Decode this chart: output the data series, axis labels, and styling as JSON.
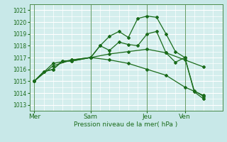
{
  "background_color": "#c8e8e8",
  "plot_bg_color": "#d4eeed",
  "grid_color": "#ffffff",
  "line_color": "#1a6b1a",
  "xlabel": "Pression niveau de la mer( hPa )",
  "ylim": [
    1012.5,
    1021.5
  ],
  "yticks": [
    1013,
    1014,
    1015,
    1016,
    1017,
    1018,
    1019,
    1020,
    1021
  ],
  "xtick_labels": [
    "Mer",
    "Sam",
    "Jeu",
    "Ven"
  ],
  "xtick_positions": [
    0,
    24,
    48,
    64
  ],
  "xlim": [
    -2,
    80
  ],
  "lines": [
    {
      "x": [
        0,
        4,
        8,
        12,
        16,
        24,
        28,
        32,
        36,
        40,
        44,
        48,
        52,
        56,
        60,
        64,
        68,
        72
      ],
      "y": [
        1015.0,
        1015.8,
        1016.0,
        1016.7,
        1016.7,
        1017.0,
        1018.0,
        1018.8,
        1019.2,
        1018.7,
        1020.3,
        1020.5,
        1020.4,
        1019.0,
        1017.5,
        1017.0,
        1014.2,
        1013.7
      ]
    },
    {
      "x": [
        0,
        4,
        8,
        12,
        16,
        24,
        28,
        32,
        36,
        40,
        44,
        48,
        52,
        56,
        60,
        64,
        68,
        72
      ],
      "y": [
        1015.0,
        1015.8,
        1016.0,
        1016.7,
        1016.7,
        1017.0,
        1018.0,
        1017.6,
        1018.3,
        1018.1,
        1018.0,
        1019.0,
        1019.2,
        1017.4,
        1016.6,
        1017.0,
        1014.1,
        1013.5
      ]
    },
    {
      "x": [
        0,
        8,
        16,
        24,
        32,
        40,
        48,
        56,
        64,
        72
      ],
      "y": [
        1015.0,
        1016.3,
        1016.8,
        1017.0,
        1017.3,
        1017.5,
        1017.7,
        1017.4,
        1016.8,
        1016.2
      ]
    },
    {
      "x": [
        0,
        8,
        16,
        24,
        32,
        40,
        48,
        56,
        64,
        72
      ],
      "y": [
        1015.0,
        1016.5,
        1016.8,
        1017.0,
        1016.8,
        1016.5,
        1016.0,
        1015.5,
        1014.5,
        1013.8
      ]
    }
  ],
  "vlines": [
    0,
    24,
    48,
    64
  ],
  "figwidth": 3.2,
  "figheight": 2.0,
  "dpi": 100,
  "ylabel_fontsize": 5.5,
  "xlabel_fontsize": 6.5,
  "xtick_fontsize": 6.5,
  "ytick_fontsize": 5.5,
  "linewidth": 0.9,
  "markersize": 2.0
}
